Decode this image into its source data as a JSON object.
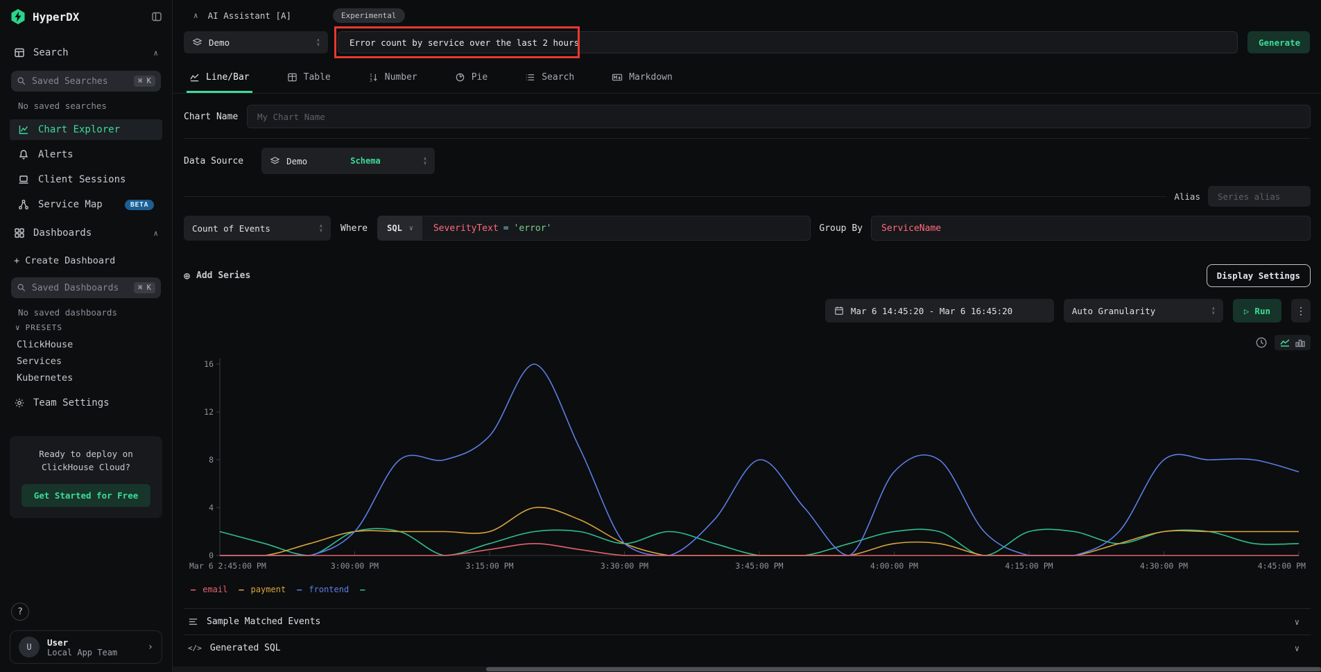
{
  "app": {
    "name": "HyperDX"
  },
  "colors": {
    "accent_green": "#3ddc97",
    "annotation_red": "#e8392e",
    "beta_badge_blue": "#1c5f94"
  },
  "sidebar": {
    "search_section": "Search",
    "saved_searches": {
      "placeholder": "Saved Searches",
      "shortcut": "⌘ K",
      "empty": "No saved searches"
    },
    "items": [
      {
        "label": "Chart Explorer"
      },
      {
        "label": "Alerts"
      },
      {
        "label": "Client Sessions"
      },
      {
        "label": "Service Map",
        "badge": "BETA"
      }
    ],
    "dashboards_section": "Dashboards",
    "create_dashboard": "+ Create Dashboard",
    "saved_dashboards": {
      "placeholder": "Saved Dashboards",
      "shortcut": "⌘ K",
      "empty": "No saved dashboards"
    },
    "presets": {
      "label": "PRESETS",
      "items": [
        "ClickHouse",
        "Services",
        "Kubernetes"
      ]
    },
    "team_settings": "Team Settings",
    "cloud_card": {
      "text": "Ready to deploy on ClickHouse Cloud?",
      "cta": "Get Started for Free"
    },
    "help": "?",
    "user": {
      "initial": "U",
      "name": "User",
      "team": "Local App Team"
    }
  },
  "ai": {
    "title": "AI Assistant [A]",
    "badge": "Experimental",
    "source": "Demo",
    "prompt": "Error count by service over the last 2 hours",
    "generate": "Generate"
  },
  "tabs": [
    {
      "label": "Line/Bar"
    },
    {
      "label": "Table"
    },
    {
      "label": "Number"
    },
    {
      "label": "Pie"
    },
    {
      "label": "Search"
    },
    {
      "label": "Markdown"
    }
  ],
  "form": {
    "chart_name": {
      "label": "Chart Name",
      "placeholder": "My Chart Name"
    },
    "data_source": {
      "label": "Data Source",
      "value": "Demo",
      "schema": "Schema"
    },
    "alias": {
      "label": "Alias",
      "placeholder": "Series alias"
    },
    "series": {
      "aggregation": "Count of Events",
      "where_label": "Where",
      "language": "SQL",
      "where_field": "SeverityText",
      "where_op": "=",
      "where_value": "'error'",
      "group_by_label": "Group By",
      "group_by": "ServiceName"
    },
    "add_series": "Add Series",
    "display_settings": "Display Settings"
  },
  "toolbar": {
    "date_range": "Mar 6 14:45:20 - Mar 6 16:45:20",
    "granularity": "Auto Granularity",
    "run": "Run"
  },
  "panels": {
    "sample_events": "Sample Matched Events",
    "generated_sql": "Generated SQL"
  },
  "chart_data": {
    "type": "line",
    "x": [
      "14:45",
      "14:50",
      "14:55",
      "15:00",
      "15:05",
      "15:10",
      "15:15",
      "15:20",
      "15:25",
      "15:30",
      "15:35",
      "15:40",
      "15:45",
      "15:50",
      "15:55",
      "16:00",
      "16:05",
      "16:10",
      "16:15",
      "16:20",
      "16:25",
      "16:30",
      "16:35",
      "16:40",
      "16:45"
    ],
    "xticks": [
      "Mar 6 2:45:00 PM",
      "3:00:00 PM",
      "3:15:00 PM",
      "3:30:00 PM",
      "3:45:00 PM",
      "4:00:00 PM",
      "4:15:00 PM",
      "4:30:00 PM",
      "4:45:00 PM"
    ],
    "yticks": [
      0,
      4,
      8,
      12,
      16
    ],
    "ylim": [
      0,
      16
    ],
    "grid": false,
    "legend_position": "bottom-left",
    "series": [
      {
        "name": "email",
        "color": "#e0636e",
        "values": [
          0,
          0,
          0,
          0,
          0,
          0,
          0.5,
          1,
          0.5,
          0,
          0,
          0,
          0,
          0,
          0,
          0,
          0,
          0,
          0,
          0,
          0,
          0,
          0,
          0,
          0
        ]
      },
      {
        "name": "payment",
        "color": "#d9a53d",
        "values": [
          0,
          0,
          1,
          2,
          2,
          2,
          2,
          4,
          3,
          1,
          0,
          0,
          0,
          0,
          0,
          1,
          1,
          0,
          0,
          0,
          1,
          2,
          2,
          2,
          2
        ]
      },
      {
        "name": "frontend",
        "color": "#5b7fe8",
        "values": [
          0,
          0,
          0,
          2,
          8,
          8,
          10,
          16,
          9,
          1,
          0,
          3,
          8,
          4,
          0,
          7,
          8,
          2,
          0,
          0,
          2,
          8,
          8,
          8,
          7
        ]
      },
      {
        "name": "",
        "color": "#2fbf8f",
        "values": [
          2,
          1,
          0,
          2,
          2,
          0,
          1,
          2,
          2,
          1,
          2,
          1,
          0,
          0,
          1,
          2,
          2,
          0,
          2,
          2,
          1,
          2,
          2,
          1,
          1
        ]
      }
    ]
  }
}
